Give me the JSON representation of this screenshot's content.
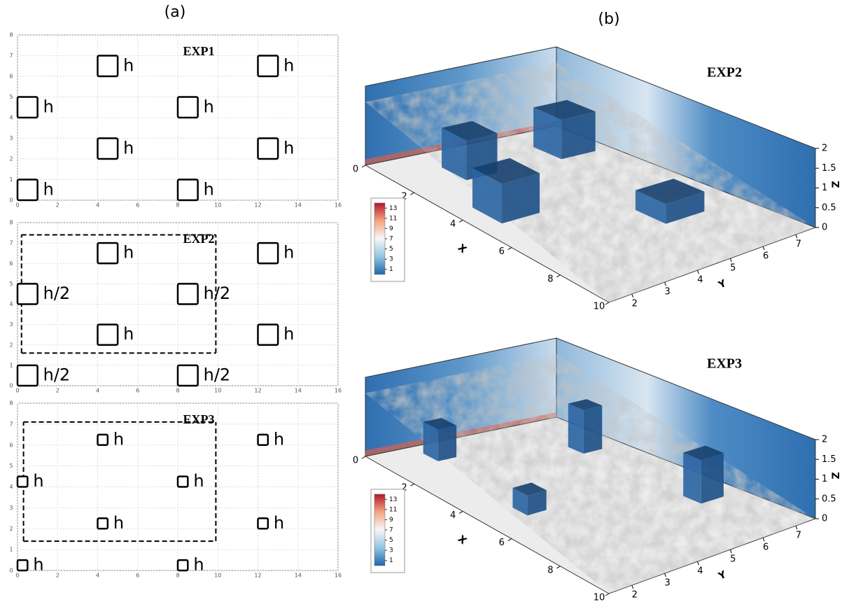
{
  "panel_a": {
    "label": "(a)",
    "plots": [
      {
        "title": "EXP1",
        "xlim": [
          0,
          16
        ],
        "ylim": [
          0,
          8
        ],
        "xticks": [
          0,
          2,
          4,
          6,
          8,
          10,
          12,
          14,
          16
        ],
        "yticks": [
          0,
          1,
          2,
          3,
          4,
          5,
          6,
          7,
          8
        ],
        "cube_size": 1,
        "cubes": [
          {
            "x": 4,
            "y": 6,
            "label": "h"
          },
          {
            "x": 12,
            "y": 6,
            "label": "h"
          },
          {
            "x": 0,
            "y": 4,
            "label": "h"
          },
          {
            "x": 8,
            "y": 4,
            "label": "h"
          },
          {
            "x": 4,
            "y": 2,
            "label": "h"
          },
          {
            "x": 12,
            "y": 2,
            "label": "h"
          },
          {
            "x": 0,
            "y": 0,
            "label": "h"
          },
          {
            "x": 8,
            "y": 0,
            "label": "h"
          }
        ]
      },
      {
        "title": "EXP2",
        "xlim": [
          0,
          16
        ],
        "ylim": [
          0,
          8
        ],
        "xticks": [
          0,
          2,
          4,
          6,
          8,
          10,
          12,
          14,
          16
        ],
        "yticks": [
          0,
          1,
          2,
          3,
          4,
          5,
          6,
          7,
          8
        ],
        "cube_size": 1,
        "cubes": [
          {
            "x": 4,
            "y": 6,
            "label": "h"
          },
          {
            "x": 12,
            "y": 6,
            "label": "h"
          },
          {
            "x": 0,
            "y": 4,
            "label": "h/2"
          },
          {
            "x": 8,
            "y": 4,
            "label": "h/2"
          },
          {
            "x": 4,
            "y": 2,
            "label": "h"
          },
          {
            "x": 12,
            "y": 2,
            "label": "h"
          },
          {
            "x": 0,
            "y": 0,
            "label": "h/2"
          },
          {
            "x": 8,
            "y": 0,
            "label": "h/2"
          }
        ],
        "region": {
          "x": [
            0.2,
            9.9
          ],
          "y": [
            1.6,
            7.4
          ]
        }
      },
      {
        "title": "EXP3",
        "xlim": [
          0,
          16
        ],
        "ylim": [
          0,
          8
        ],
        "xticks": [
          0,
          2,
          4,
          6,
          8,
          10,
          12,
          14,
          16
        ],
        "yticks": [
          0,
          1,
          2,
          3,
          4,
          5,
          6,
          7,
          8
        ],
        "cube_size": 0.5,
        "cubes": [
          {
            "x": 4,
            "y": 6,
            "label": "h"
          },
          {
            "x": 12,
            "y": 6,
            "label": "h"
          },
          {
            "x": 0,
            "y": 4,
            "label": "h"
          },
          {
            "x": 8,
            "y": 4,
            "label": "h"
          },
          {
            "x": 4,
            "y": 2,
            "label": "h"
          },
          {
            "x": 12,
            "y": 2,
            "label": "h"
          },
          {
            "x": 0,
            "y": 0,
            "label": "h"
          },
          {
            "x": 8,
            "y": 0,
            "label": "h"
          }
        ],
        "region": {
          "x": [
            0.3,
            9.9
          ],
          "y": [
            1.4,
            7.1
          ]
        }
      }
    ]
  },
  "panel_b": {
    "label": "(b)",
    "views": [
      {
        "title": "EXP2",
        "x_label": "X",
        "y_label": "Y",
        "z_label": "Z",
        "xlim": [
          0,
          10
        ],
        "ylim": [
          1.3,
          7.6
        ],
        "zlim": [
          0,
          2
        ],
        "xticks": [
          0,
          2,
          4,
          6,
          8,
          10
        ],
        "yticks": [
          2,
          3,
          4,
          5,
          6,
          7
        ],
        "zticks": [
          0,
          0.5,
          1,
          1.5,
          2
        ],
        "colorbar_lim": [
          0,
          14
        ],
        "colorbar_ticks": [
          13,
          11,
          9,
          7,
          5,
          3,
          1
        ]
      },
      {
        "title": "EXP3",
        "x_label": "X",
        "y_label": "Y",
        "z_label": "Z",
        "xlim": [
          0,
          10
        ],
        "ylim": [
          1.3,
          7.6
        ],
        "zlim": [
          0,
          2
        ],
        "xticks": [
          0,
          2,
          4,
          6,
          8,
          10
        ],
        "yticks": [
          2,
          3,
          4,
          5,
          6,
          7
        ],
        "zticks": [
          0,
          0.5,
          1,
          1.5,
          2
        ],
        "colorbar_lim": [
          0,
          14
        ],
        "colorbar_ticks": [
          13,
          11,
          9,
          7,
          5,
          3,
          1
        ]
      }
    ]
  }
}
